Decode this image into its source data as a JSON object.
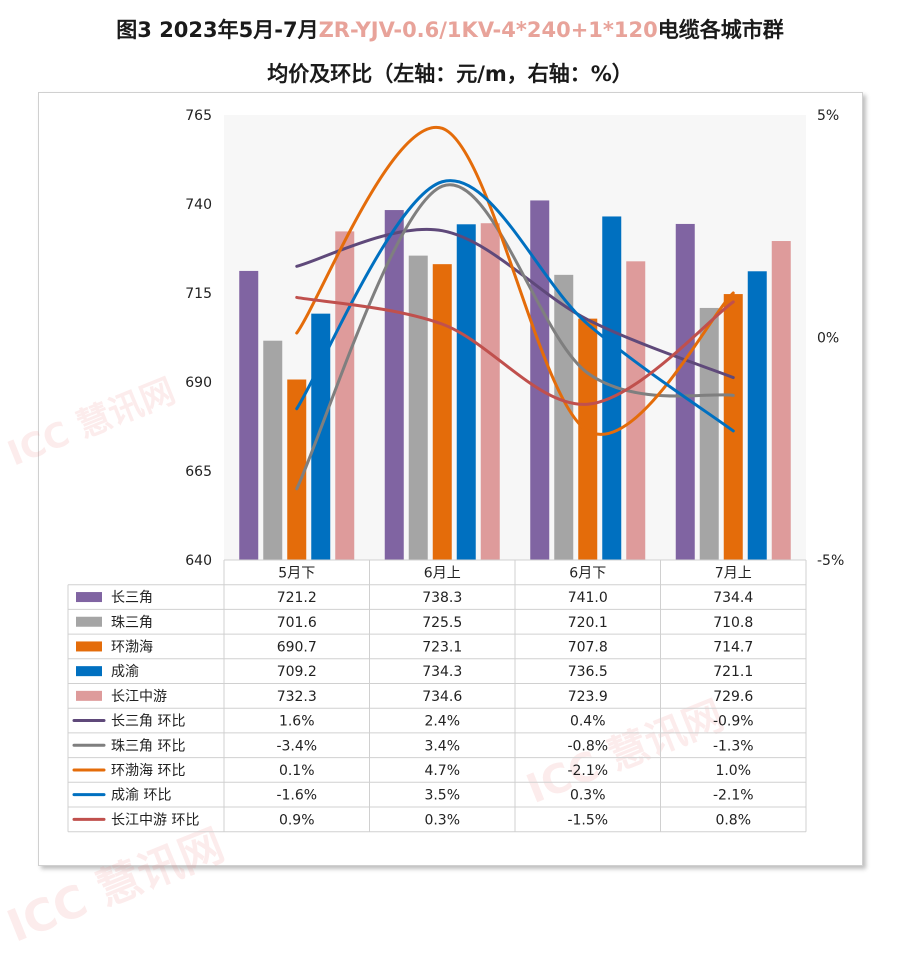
{
  "title": {
    "prefix": "图3 2023年5月-7月",
    "highlight": "ZR-YJV-0.6/1KV-4*240+1*120",
    "suffix": "电缆各城市群",
    "line2": "均价及环比（左轴：元/m，右轴：%）"
  },
  "watermark": "ICC 慧讯网",
  "colors": {
    "长三角": "#8064a2",
    "珠三角": "#a5a5a5",
    "环渤海": "#e46c0a",
    "成渝": "#0070c0",
    "长江中游": "#de9b9b",
    "长三角 环比": "#5f497a",
    "珠三角 环比": "#7f7f7f",
    "环渤海 环比": "#e46c0a",
    "成渝 环比": "#0070c0",
    "长江中游 环比": "#c0504d"
  },
  "chart_data": {
    "type": "bar",
    "categories": [
      "5月下",
      "6月上",
      "6月下",
      "7月上"
    ],
    "left_axis": {
      "ylim": [
        640,
        765
      ],
      "ticks": [
        "640",
        "665",
        "690",
        "715",
        "740",
        "765"
      ]
    },
    "right_axis": {
      "ylim": [
        -5,
        5
      ],
      "ticks": [
        "-5%",
        "0%",
        "5%"
      ]
    },
    "series": [
      {
        "name": "长三角",
        "type": "bar",
        "values": [
          721.2,
          738.3,
          741.0,
          734.4
        ]
      },
      {
        "name": "珠三角",
        "type": "bar",
        "values": [
          701.6,
          725.5,
          720.1,
          710.8
        ]
      },
      {
        "name": "环渤海",
        "type": "bar",
        "values": [
          690.7,
          723.1,
          707.8,
          714.7
        ]
      },
      {
        "name": "成渝",
        "type": "bar",
        "values": [
          709.2,
          734.3,
          736.5,
          721.1
        ]
      },
      {
        "name": "长江中游",
        "type": "bar",
        "values": [
          732.3,
          734.6,
          723.9,
          729.6
        ]
      },
      {
        "name": "长三角 环比",
        "type": "line",
        "axis": "right",
        "values": [
          1.6,
          2.4,
          0.4,
          -0.9
        ]
      },
      {
        "name": "珠三角 环比",
        "type": "line",
        "axis": "right",
        "values": [
          -3.4,
          3.4,
          -0.8,
          -1.3
        ]
      },
      {
        "name": "环渤海 环比",
        "type": "line",
        "axis": "right",
        "values": [
          0.1,
          4.7,
          -2.1,
          1.0
        ]
      },
      {
        "name": "成渝 环比",
        "type": "line",
        "axis": "right",
        "values": [
          -1.6,
          3.5,
          0.3,
          -2.1
        ]
      },
      {
        "name": "长江中游 环比",
        "type": "line",
        "axis": "right",
        "values": [
          0.9,
          0.3,
          -1.5,
          0.8
        ]
      }
    ],
    "table": [
      {
        "label": "长三角",
        "cells": [
          "721.2",
          "738.3",
          "741.0",
          "734.4"
        ]
      },
      {
        "label": "珠三角",
        "cells": [
          "701.6",
          "725.5",
          "720.1",
          "710.8"
        ]
      },
      {
        "label": "环渤海",
        "cells": [
          "690.7",
          "723.1",
          "707.8",
          "714.7"
        ]
      },
      {
        "label": "成渝",
        "cells": [
          "709.2",
          "734.3",
          "736.5",
          "721.1"
        ]
      },
      {
        "label": "长江中游",
        "cells": [
          "732.3",
          "734.6",
          "723.9",
          "729.6"
        ]
      },
      {
        "label": "长三角 环比",
        "cells": [
          "1.6%",
          "2.4%",
          "0.4%",
          "-0.9%"
        ]
      },
      {
        "label": "珠三角 环比",
        "cells": [
          "-3.4%",
          "3.4%",
          "-0.8%",
          "-1.3%"
        ]
      },
      {
        "label": "环渤海 环比",
        "cells": [
          "0.1%",
          "4.7%",
          "-2.1%",
          "1.0%"
        ]
      },
      {
        "label": "成渝 环比",
        "cells": [
          "-1.6%",
          "3.5%",
          "0.3%",
          "-2.1%"
        ]
      },
      {
        "label": "长江中游 环比",
        "cells": [
          "0.9%",
          "0.3%",
          "-1.5%",
          "0.8%"
        ]
      }
    ],
    "grid": false,
    "legend": "data-table"
  }
}
